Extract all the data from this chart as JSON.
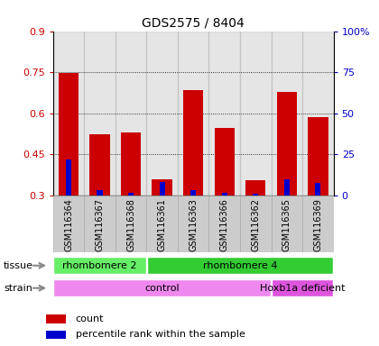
{
  "title": "GDS2575 / 8404",
  "samples": [
    "GSM116364",
    "GSM116367",
    "GSM116368",
    "GSM116361",
    "GSM116363",
    "GSM116366",
    "GSM116362",
    "GSM116365",
    "GSM116369"
  ],
  "count_values": [
    0.748,
    0.522,
    0.53,
    0.358,
    0.686,
    0.548,
    0.356,
    0.678,
    0.585
  ],
  "percentile_values": [
    0.43,
    0.318,
    0.31,
    0.35,
    0.32,
    0.31,
    0.305,
    0.36,
    0.345
  ],
  "bar_bottom": 0.3,
  "red_color": "#cc0000",
  "blue_color": "#0000cc",
  "ylim": [
    0.3,
    0.9
  ],
  "yticks": [
    0.3,
    0.45,
    0.6,
    0.75,
    0.9
  ],
  "right_ytick_values": [
    0,
    25,
    50,
    75,
    100
  ],
  "right_ylabels": [
    "0",
    "25",
    "50",
    "75",
    "100%"
  ],
  "tissue_groups": [
    {
      "text": "rhombomere 2",
      "start": 0,
      "end": 3,
      "color": "#66ee66"
    },
    {
      "text": "rhombomere 4",
      "start": 3,
      "end": 9,
      "color": "#33cc33"
    }
  ],
  "strain_groups": [
    {
      "text": "control",
      "start": 0,
      "end": 7,
      "color": "#ee88ee"
    },
    {
      "text": "Hoxb1a deficient",
      "start": 7,
      "end": 9,
      "color": "#dd55dd"
    }
  ],
  "legend_items": [
    {
      "color": "#cc0000",
      "label": "count"
    },
    {
      "color": "#0000cc",
      "label": "percentile rank within the sample"
    }
  ],
  "tissue_label": "tissue",
  "strain_label": "strain",
  "col_bg_color": "#cccccc",
  "col_border_color": "#aaaaaa"
}
